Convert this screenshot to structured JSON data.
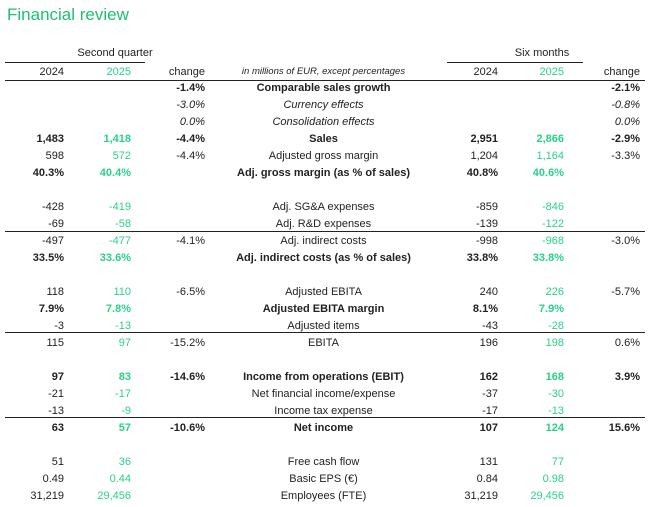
{
  "title": "Financial review",
  "header": {
    "group_left": "Second quarter",
    "group_right": "Six months",
    "y2024": "2024",
    "y2025": "2025",
    "change": "change",
    "units": "in millions of EUR, except percentages"
  },
  "accent_color": "#2bd18a",
  "rows": [
    {
      "label": "Comparable sales growth",
      "q24": "",
      "q25": "",
      "qchg": "-1.4%",
      "s24": "",
      "s25": "",
      "schg": "-2.1%",
      "style": "b"
    },
    {
      "label": "Currency effects",
      "q24": "",
      "q25": "",
      "qchg": "-3.0%",
      "s24": "",
      "s25": "",
      "schg": "-0.8%",
      "style": "i"
    },
    {
      "label": "Consolidation effects",
      "q24": "",
      "q25": "",
      "qchg": "0.0%",
      "s24": "",
      "s25": "",
      "schg": "0.0%",
      "style": "i"
    },
    {
      "label": "Sales",
      "q24": "1,483",
      "q25": "1,418",
      "qchg": "-4.4%",
      "s24": "2,951",
      "s25": "2,866",
      "schg": "-2.9%",
      "style": "b"
    },
    {
      "label": "Adjusted gross margin",
      "q24": "598",
      "q25": "572",
      "qchg": "-4.4%",
      "s24": "1,204",
      "s25": "1,164",
      "schg": "-3.3%",
      "style": ""
    },
    {
      "label": "Adj. gross margin (as % of sales)",
      "q24": "40.3%",
      "q25": "40.4%",
      "qchg": "",
      "s24": "40.8%",
      "s25": "40.6%",
      "schg": "",
      "style": "b"
    },
    {
      "label": "Adj. SG&A expenses",
      "q24": "-428",
      "q25": "-419",
      "qchg": "",
      "s24": "-859",
      "s25": "-846",
      "schg": "",
      "style": ""
    },
    {
      "label": "Adj. R&D expenses",
      "q24": "-69",
      "q25": "-58",
      "qchg": "",
      "s24": "-139",
      "s25": "-122",
      "schg": "",
      "style": ""
    },
    {
      "label": "Adj. indirect costs",
      "q24": "-497",
      "q25": "-477",
      "qchg": "-4.1%",
      "s24": "-998",
      "s25": "-968",
      "schg": "-3.0%",
      "style": ""
    },
    {
      "label": "Adj. indirect costs (as % of sales)",
      "q24": "33.5%",
      "q25": "33.6%",
      "qchg": "",
      "s24": "33.8%",
      "s25": "33.8%",
      "schg": "",
      "style": "b"
    },
    {
      "label": "Adjusted EBITA",
      "q24": "118",
      "q25": "110",
      "qchg": "-6.5%",
      "s24": "240",
      "s25": "226",
      "schg": "-5.7%",
      "style": ""
    },
    {
      "label": "Adjusted EBITA margin",
      "q24": "7.9%",
      "q25": "7.8%",
      "qchg": "",
      "s24": "8.1%",
      "s25": "7.9%",
      "schg": "",
      "style": "b"
    },
    {
      "label": "Adjusted items",
      "q24": "-3",
      "q25": "-13",
      "qchg": "",
      "s24": "-43",
      "s25": "-28",
      "schg": "",
      "style": ""
    },
    {
      "label": "EBITA",
      "q24": "115",
      "q25": "97",
      "qchg": "-15.2%",
      "s24": "196",
      "s25": "198",
      "schg": "0.6%",
      "style": ""
    },
    {
      "label": "Income from operations (EBIT)",
      "q24": "97",
      "q25": "83",
      "qchg": "-14.6%",
      "s24": "162",
      "s25": "168",
      "schg": "3.9%",
      "style": "b"
    },
    {
      "label": "Net financial income/expense",
      "q24": "-21",
      "q25": "-17",
      "qchg": "",
      "s24": "-37",
      "s25": "-30",
      "schg": "",
      "style": ""
    },
    {
      "label": "Income tax expense",
      "q24": "-13",
      "q25": "-9",
      "qchg": "",
      "s24": "-17",
      "s25": "-13",
      "schg": "",
      "style": ""
    },
    {
      "label": "Net income",
      "q24": "63",
      "q25": "57",
      "qchg": "-10.6%",
      "s24": "107",
      "s25": "124",
      "schg": "15.6%",
      "style": "b"
    },
    {
      "label": "Free cash flow",
      "q24": "51",
      "q25": "36",
      "qchg": "",
      "s24": "131",
      "s25": "77",
      "schg": "",
      "style": ""
    },
    {
      "label": "Basic EPS (€)",
      "q24": "0.49",
      "q25": "0.44",
      "qchg": "",
      "s24": "0.84",
      "s25": "0.98",
      "schg": "",
      "style": ""
    },
    {
      "label": "Employees (FTE)",
      "q24": "31,219",
      "q25": "29,456",
      "qchg": "",
      "s24": "31,219",
      "s25": "29,456",
      "schg": "",
      "style": ""
    }
  ]
}
